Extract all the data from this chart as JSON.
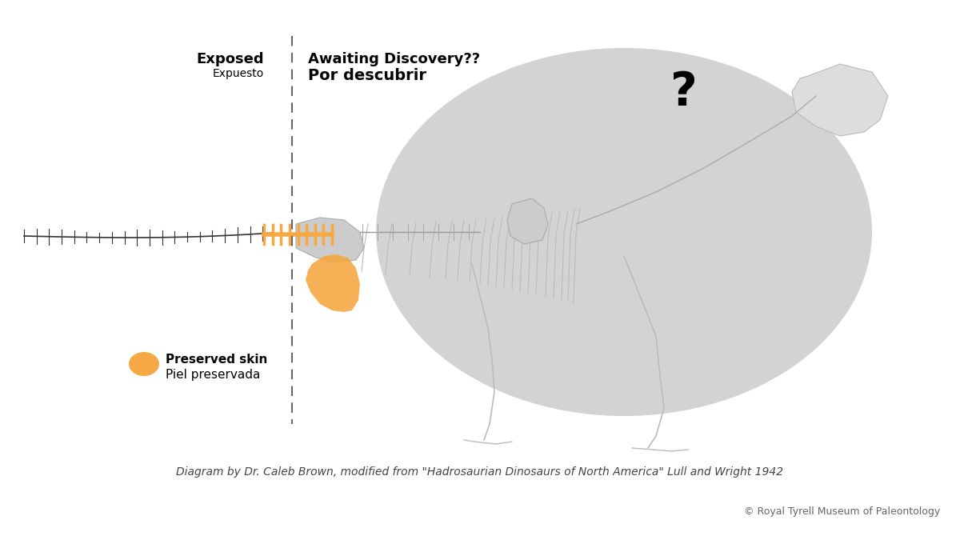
{
  "bg_color": "#ffffff",
  "gray_ellipse_color": "#cccccc",
  "orange_color": "#f5a843",
  "skeleton_line_color": "#aaaaaa",
  "spine_color": "#333333",
  "dashed_line_color": "#666666",
  "text_exposed_en": "Exposed",
  "text_exposed_es": "Expuesto",
  "text_awaiting_en": "Awaiting Discovery??",
  "text_awaiting_es": "Por descubrir",
  "text_skin_en": "Preserved skin",
  "text_skin_es": "Piel preservada",
  "text_question": "?",
  "text_caption": "Diagram by Dr. Caleb Brown, modified from \"Hadrosaurian Dinosaurs of North America\" Lull and Wright 1942",
  "text_credit": "© Royal Tyrell Museum of Paleontology",
  "figsize": [
    12.0,
    6.75
  ],
  "dpi": 100
}
